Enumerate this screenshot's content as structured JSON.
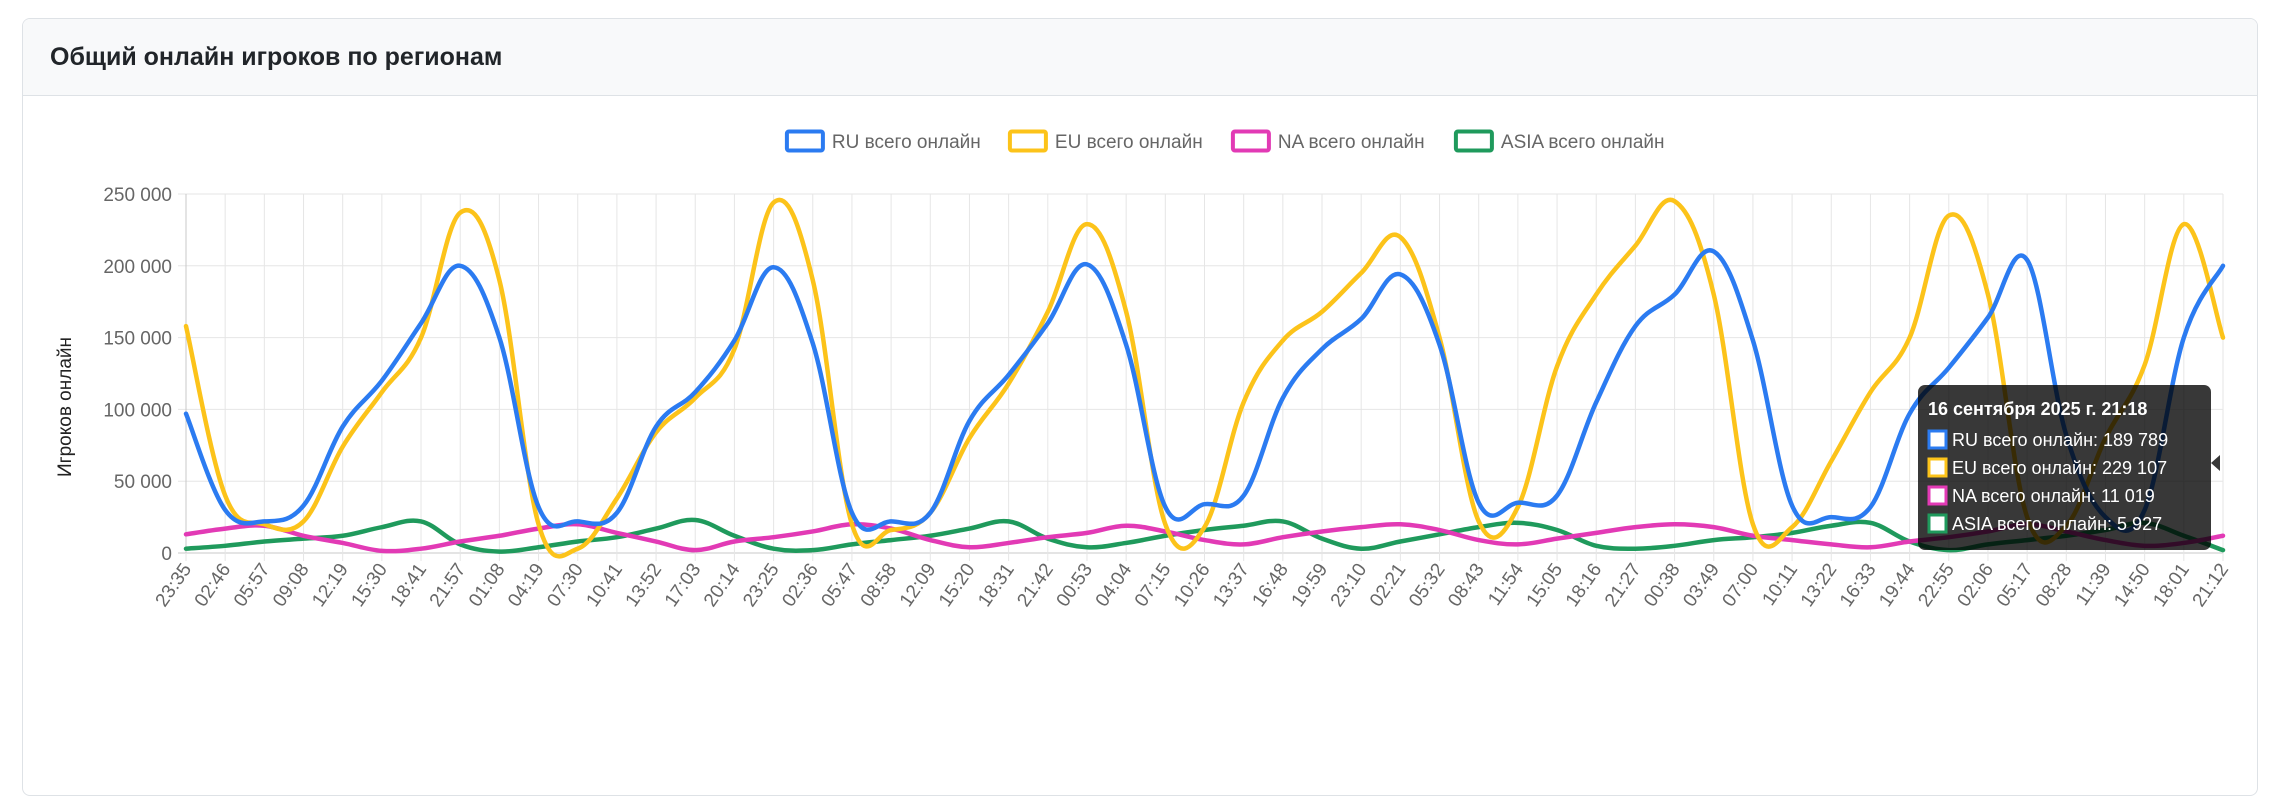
{
  "card": {
    "title": "Общий онлайн игроков по регионам"
  },
  "colors": {
    "ru": "#2b7bf1",
    "eu": "#fcc31a",
    "na": "#e23ab5",
    "asia": "#1f9a5c",
    "grid": "#e6e6e6",
    "text": "#666666"
  },
  "tooltip": {
    "title": "16 сентября 2025 г. 21:18",
    "lines": [
      "RU всего онлайн: 189 789",
      "EU всего онлайн: 229 107",
      "NA всего онлайн: 11 019",
      "ASIA всего онлайн: 5 927"
    ]
  },
  "chart_data": {
    "type": "line",
    "ylabel": "Игроков онлайн",
    "ylim": [
      0,
      250000
    ],
    "yticks": [
      0,
      50000,
      100000,
      150000,
      200000,
      250000
    ],
    "ytick_labels": [
      "0",
      "50 000",
      "100 000",
      "150 000",
      "200 000",
      "250 000"
    ],
    "x": [
      "23:35",
      "02:46",
      "05:57",
      "09:08",
      "12:19",
      "15:30",
      "18:41",
      "21:57",
      "01:08",
      "04:19",
      "07:30",
      "10:41",
      "13:52",
      "17:03",
      "20:14",
      "23:25",
      "02:36",
      "05:47",
      "08:58",
      "12:09",
      "15:20",
      "18:31",
      "21:42",
      "00:53",
      "04:04",
      "07:15",
      "10:26",
      "13:37",
      "16:48",
      "19:59",
      "23:10",
      "02:21",
      "05:32",
      "08:43",
      "11:54",
      "15:05",
      "18:16",
      "21:27",
      "00:38",
      "03:49",
      "07:00",
      "10:11",
      "13:22",
      "16:33",
      "19:44",
      "22:55",
      "02:06",
      "05:17",
      "08:28",
      "11:39",
      "14:50",
      "18:01",
      "21:12"
    ],
    "legend_position": "top",
    "grid": true,
    "series": [
      {
        "name": "RU всего онлайн",
        "color": "#2b7bf1",
        "values": [
          97000,
          30000,
          22000,
          33000,
          88000,
          120000,
          160000,
          200000,
          150000,
          32000,
          22000,
          28000,
          88000,
          112000,
          148000,
          199000,
          146000,
          28000,
          22000,
          28000,
          92000,
          124000,
          160000,
          201000,
          145000,
          32000,
          34000,
          40000,
          108000,
          142000,
          163000,
          194000,
          145000,
          35000,
          35000,
          40000,
          105000,
          158000,
          180000,
          210000,
          148000,
          33000,
          25000,
          32000,
          97000,
          129000,
          164000,
          204000,
          82000,
          25000,
          30000,
          150000,
          200000
        ]
      },
      {
        "name": "EU всего онлайн",
        "color": "#fcc31a",
        "values": [
          158000,
          40000,
          20000,
          22000,
          74000,
          112000,
          150000,
          237000,
          190000,
          20000,
          3000,
          38000,
          84000,
          108000,
          142000,
          244000,
          190000,
          20000,
          16000,
          28000,
          80000,
          118000,
          168000,
          229000,
          168000,
          20000,
          18000,
          105000,
          148000,
          168000,
          195000,
          220000,
          150000,
          22000,
          32000,
          130000,
          180000,
          214000,
          245000,
          180000,
          20000,
          18000,
          64000,
          112000,
          150000,
          235000,
          180000,
          25000,
          19000,
          80000,
          131000,
          229000,
          150000
        ]
      },
      {
        "name": "NA всего онлайн",
        "color": "#e23ab5",
        "values": [
          13000,
          17000,
          19000,
          12000,
          7000,
          1500,
          3000,
          8000,
          12000,
          17000,
          20000,
          14000,
          8000,
          2000,
          8000,
          11000,
          15000,
          20000,
          17000,
          9000,
          4000,
          7000,
          11000,
          14000,
          19000,
          15000,
          9000,
          6000,
          11000,
          15000,
          18000,
          20000,
          16000,
          9000,
          6000,
          10000,
          14000,
          18000,
          20000,
          18000,
          12000,
          9000,
          6000,
          4000,
          8000,
          11000,
          15000,
          20000,
          15000,
          9000,
          5000,
          7000,
          12000
        ]
      },
      {
        "name": "ASIA всего онлайн",
        "color": "#1f9a5c",
        "values": [
          3000,
          5000,
          8000,
          10000,
          12000,
          18000,
          22000,
          6000,
          1000,
          4000,
          8000,
          11000,
          17000,
          23000,
          12000,
          3000,
          2000,
          6000,
          9000,
          12000,
          17000,
          22000,
          10000,
          4000,
          7000,
          12000,
          16000,
          19000,
          22000,
          10000,
          3000,
          8000,
          13000,
          18000,
          21000,
          16000,
          5000,
          3000,
          5000,
          9000,
          11000,
          14000,
          19000,
          21000,
          8000,
          2000,
          6000,
          9000,
          12000,
          16000,
          21000,
          12000,
          2000
        ]
      }
    ]
  }
}
